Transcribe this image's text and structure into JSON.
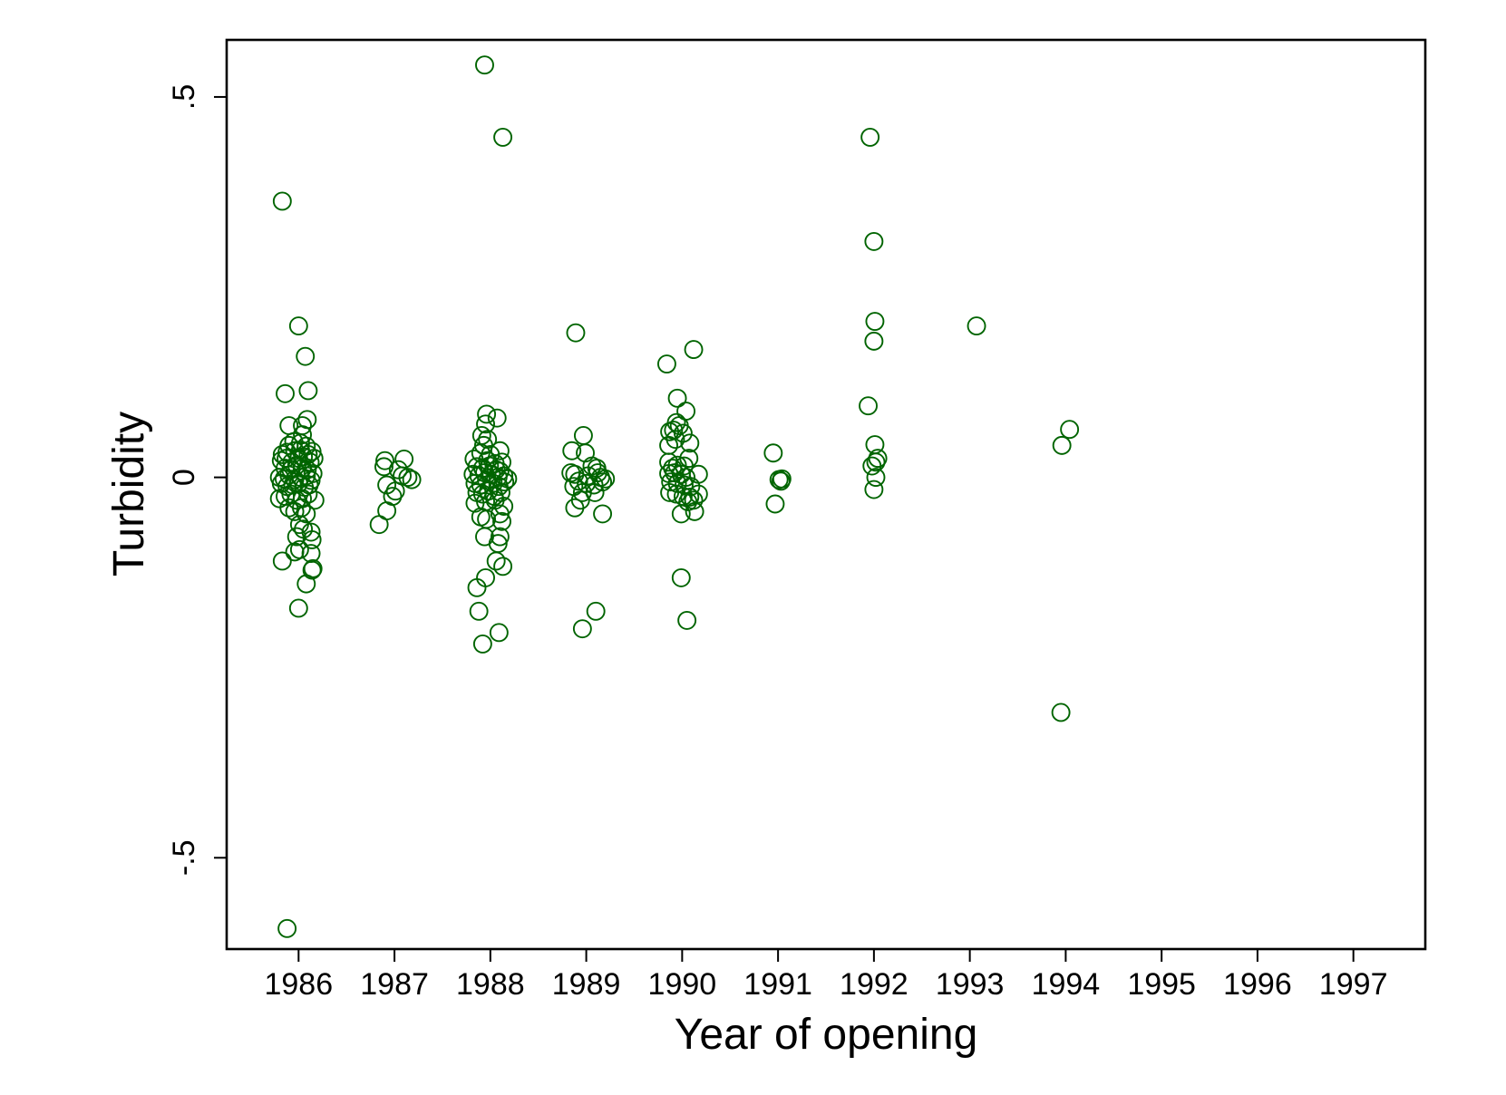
{
  "chart_data": {
    "type": "scatter",
    "xlabel": "Year of opening",
    "ylabel": "Turbidity",
    "xlim": [
      1985.25,
      1997.75
    ],
    "ylim": [
      -0.62,
      0.575
    ],
    "x_ticks": [
      {
        "value": 1986,
        "label": "1986"
      },
      {
        "value": 1987,
        "label": "1987"
      },
      {
        "value": 1988,
        "label": "1988"
      },
      {
        "value": 1989,
        "label": "1989"
      },
      {
        "value": 1990,
        "label": "1990"
      },
      {
        "value": 1991,
        "label": "1991"
      },
      {
        "value": 1992,
        "label": "1992"
      },
      {
        "value": 1993,
        "label": "1993"
      },
      {
        "value": 1994,
        "label": "1994"
      },
      {
        "value": 1995,
        "label": "1995"
      },
      {
        "value": 1996,
        "label": "1996"
      },
      {
        "value": 1997,
        "label": "1997"
      }
    ],
    "y_ticks": [
      {
        "value": -0.5,
        "label": "-.5"
      },
      {
        "value": 0,
        "label": "0"
      },
      {
        "value": 0.5,
        "label": ".5"
      }
    ],
    "grid": false,
    "legend": "none",
    "marker": "hollow-circle",
    "color": "#006400",
    "series": [
      {
        "points": [
          [
            1985.83,
            0.363
          ],
          [
            1985.86,
            0.11
          ],
          [
            1985.9,
            0.068
          ],
          [
            1986.0,
            0.199
          ],
          [
            1986.07,
            0.159
          ],
          [
            1986.1,
            0.114
          ],
          [
            1986.09,
            0.076
          ],
          [
            1986.04,
            0.068
          ],
          [
            1986.04,
            0.056
          ],
          [
            1985.95,
            0.047
          ],
          [
            1985.9,
            0.042
          ],
          [
            1986.02,
            0.045
          ],
          [
            1986.08,
            0.041
          ],
          [
            1986.14,
            0.034
          ],
          [
            1985.83,
            0.03
          ],
          [
            1985.88,
            0.033
          ],
          [
            1985.96,
            0.035
          ],
          [
            1986.02,
            0.036
          ],
          [
            1986.1,
            0.03
          ],
          [
            1986.16,
            0.025
          ],
          [
            1985.82,
            0.022
          ],
          [
            1985.87,
            0.025
          ],
          [
            1985.93,
            0.02
          ],
          [
            1986.0,
            0.025
          ],
          [
            1986.05,
            0.027
          ],
          [
            1986.12,
            0.02
          ],
          [
            1985.86,
            0.012
          ],
          [
            1985.92,
            0.01
          ],
          [
            1985.98,
            0.016
          ],
          [
            1986.04,
            0.012
          ],
          [
            1986.09,
            0.01
          ],
          [
            1986.15,
            0.005
          ],
          [
            1985.8,
            0.0
          ],
          [
            1985.85,
            -0.002
          ],
          [
            1985.9,
            0.003
          ],
          [
            1985.96,
            -0.003
          ],
          [
            1986.02,
            0.0
          ],
          [
            1986.08,
            0.002
          ],
          [
            1986.13,
            -0.004
          ],
          [
            1985.82,
            -0.008
          ],
          [
            1985.88,
            -0.012
          ],
          [
            1985.94,
            -0.01
          ],
          [
            1986.0,
            -0.008
          ],
          [
            1986.06,
            -0.013
          ],
          [
            1986.11,
            -0.01
          ],
          [
            1985.8,
            -0.028
          ],
          [
            1985.86,
            -0.025
          ],
          [
            1985.92,
            -0.022
          ],
          [
            1985.98,
            -0.03
          ],
          [
            1986.04,
            -0.028
          ],
          [
            1986.1,
            -0.022
          ],
          [
            1986.17,
            -0.03
          ],
          [
            1985.9,
            -0.04
          ],
          [
            1985.96,
            -0.045
          ],
          [
            1986.03,
            -0.04
          ],
          [
            1986.08,
            -0.048
          ],
          [
            1986.01,
            -0.062
          ],
          [
            1986.05,
            -0.068
          ],
          [
            1985.98,
            -0.078
          ],
          [
            1986.13,
            -0.072
          ],
          [
            1986.14,
            -0.082
          ],
          [
            1985.96,
            -0.098
          ],
          [
            1986.01,
            -0.095
          ],
          [
            1986.13,
            -0.1
          ],
          [
            1985.83,
            -0.11
          ],
          [
            1986.15,
            -0.12
          ],
          [
            1986.14,
            -0.122
          ],
          [
            1986.08,
            -0.14
          ],
          [
            1986.0,
            -0.172
          ],
          [
            1985.88,
            -0.593
          ]
        ]
      },
      {
        "points": [
          [
            1986.9,
            0.022
          ],
          [
            1987.1,
            0.024
          ],
          [
            1986.89,
            0.014
          ],
          [
            1987.04,
            0.01
          ],
          [
            1987.08,
            0.002
          ],
          [
            1987.14,
            0.0
          ],
          [
            1987.18,
            -0.003
          ],
          [
            1986.92,
            -0.01
          ],
          [
            1987.01,
            -0.018
          ],
          [
            1986.98,
            -0.025
          ],
          [
            1986.92,
            -0.044
          ],
          [
            1986.84,
            -0.062
          ]
        ]
      },
      {
        "points": [
          [
            1987.94,
            0.542
          ],
          [
            1988.13,
            0.447
          ],
          [
            1987.96,
            0.083
          ],
          [
            1988.07,
            0.078
          ],
          [
            1987.95,
            0.07
          ],
          [
            1987.91,
            0.055
          ],
          [
            1987.97,
            0.05
          ],
          [
            1987.93,
            0.042
          ],
          [
            1987.9,
            0.032
          ],
          [
            1988.0,
            0.03
          ],
          [
            1988.1,
            0.035
          ],
          [
            1987.83,
            0.024
          ],
          [
            1987.97,
            0.022
          ],
          [
            1988.05,
            0.018
          ],
          [
            1988.12,
            0.02
          ],
          [
            1987.86,
            0.014
          ],
          [
            1987.92,
            0.012
          ],
          [
            1987.99,
            0.015
          ],
          [
            1988.06,
            0.01
          ],
          [
            1988.1,
            0.008
          ],
          [
            1987.82,
            0.004
          ],
          [
            1987.88,
            0.002
          ],
          [
            1987.94,
            0.006
          ],
          [
            1988.01,
            0.004
          ],
          [
            1988.08,
            0.0
          ],
          [
            1988.14,
            0.002
          ],
          [
            1988.18,
            -0.002
          ],
          [
            1987.84,
            -0.008
          ],
          [
            1987.9,
            -0.01
          ],
          [
            1987.96,
            -0.004
          ],
          [
            1988.03,
            -0.008
          ],
          [
            1988.09,
            -0.012
          ],
          [
            1988.15,
            -0.006
          ],
          [
            1987.86,
            -0.02
          ],
          [
            1987.92,
            -0.022
          ],
          [
            1987.98,
            -0.018
          ],
          [
            1988.04,
            -0.025
          ],
          [
            1988.11,
            -0.02
          ],
          [
            1987.84,
            -0.034
          ],
          [
            1987.95,
            -0.032
          ],
          [
            1988.05,
            -0.03
          ],
          [
            1988.14,
            -0.038
          ],
          [
            1987.9,
            -0.052
          ],
          [
            1987.96,
            -0.055
          ],
          [
            1988.1,
            -0.048
          ],
          [
            1988.12,
            -0.058
          ],
          [
            1987.94,
            -0.078
          ],
          [
            1988.1,
            -0.078
          ],
          [
            1988.08,
            -0.087
          ],
          [
            1988.06,
            -0.11
          ],
          [
            1988.13,
            -0.117
          ],
          [
            1987.95,
            -0.132
          ],
          [
            1987.86,
            -0.145
          ],
          [
            1987.88,
            -0.176
          ],
          [
            1988.09,
            -0.204
          ],
          [
            1987.92,
            -0.219
          ]
        ]
      },
      {
        "points": [
          [
            1988.89,
            0.19
          ],
          [
            1988.97,
            0.055
          ],
          [
            1988.85,
            0.035
          ],
          [
            1988.99,
            0.032
          ],
          [
            1989.06,
            0.015
          ],
          [
            1989.11,
            0.012
          ],
          [
            1988.84,
            0.006
          ],
          [
            1988.88,
            0.004
          ],
          [
            1989.02,
            0.002
          ],
          [
            1989.12,
            0.006
          ],
          [
            1989.15,
            0.0
          ],
          [
            1989.2,
            -0.002
          ],
          [
            1988.92,
            -0.005
          ],
          [
            1989.0,
            -0.008
          ],
          [
            1989.08,
            -0.01
          ],
          [
            1989.17,
            -0.006
          ],
          [
            1988.87,
            -0.012
          ],
          [
            1988.96,
            -0.02
          ],
          [
            1989.09,
            -0.02
          ],
          [
            1988.94,
            -0.03
          ],
          [
            1988.88,
            -0.04
          ],
          [
            1989.17,
            -0.048
          ],
          [
            1989.1,
            -0.176
          ],
          [
            1988.96,
            -0.199
          ]
        ]
      },
      {
        "points": [
          [
            1989.84,
            0.149
          ],
          [
            1990.12,
            0.168
          ],
          [
            1989.95,
            0.104
          ],
          [
            1990.04,
            0.087
          ],
          [
            1989.94,
            0.072
          ],
          [
            1989.97,
            0.068
          ],
          [
            1989.91,
            0.062
          ],
          [
            1989.87,
            0.06
          ],
          [
            1990.01,
            0.058
          ],
          [
            1989.93,
            0.05
          ],
          [
            1989.86,
            0.042
          ],
          [
            1990.08,
            0.045
          ],
          [
            1990.07,
            0.025
          ],
          [
            1989.86,
            0.02
          ],
          [
            1989.95,
            0.016
          ],
          [
            1989.9,
            0.012
          ],
          [
            1990.02,
            0.015
          ],
          [
            1989.86,
            0.005
          ],
          [
            1989.92,
            0.006
          ],
          [
            1989.99,
            0.004
          ],
          [
            1990.04,
            0.0
          ],
          [
            1990.17,
            0.004
          ],
          [
            1989.88,
            -0.006
          ],
          [
            1989.95,
            -0.008
          ],
          [
            1990.02,
            -0.01
          ],
          [
            1990.09,
            -0.012
          ],
          [
            1989.87,
            -0.02
          ],
          [
            1989.94,
            -0.022
          ],
          [
            1990.01,
            -0.025
          ],
          [
            1990.08,
            -0.026
          ],
          [
            1990.17,
            -0.022
          ],
          [
            1990.12,
            -0.03
          ],
          [
            1990.06,
            -0.032
          ],
          [
            1989.99,
            -0.048
          ],
          [
            1990.13,
            -0.045
          ],
          [
            1989.99,
            -0.132
          ],
          [
            1990.05,
            -0.188
          ]
        ]
      },
      {
        "points": [
          [
            1990.95,
            0.032
          ],
          [
            1991.01,
            -0.003
          ],
          [
            1991.04,
            -0.002
          ],
          [
            1991.03,
            -0.005
          ],
          [
            1990.97,
            -0.035
          ]
        ]
      },
      {
        "points": [
          [
            1991.96,
            0.447
          ],
          [
            1992.0,
            0.31
          ],
          [
            1992.01,
            0.205
          ],
          [
            1992.0,
            0.179
          ],
          [
            1991.94,
            0.094
          ],
          [
            1992.01,
            0.043
          ],
          [
            1992.04,
            0.025
          ],
          [
            1992.02,
            0.02
          ],
          [
            1991.98,
            0.015
          ],
          [
            1992.02,
            0.0
          ],
          [
            1992.0,
            -0.016
          ]
        ]
      },
      {
        "points": [
          [
            1993.07,
            0.199
          ]
        ]
      },
      {
        "points": [
          [
            1994.04,
            0.063
          ],
          [
            1993.96,
            0.042
          ],
          [
            1993.95,
            -0.309
          ]
        ]
      }
    ]
  }
}
